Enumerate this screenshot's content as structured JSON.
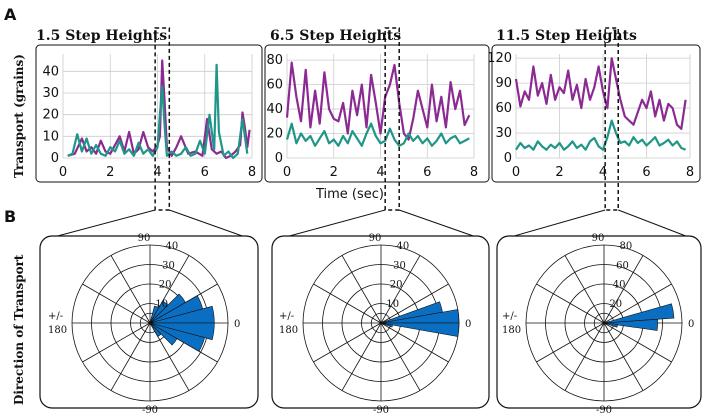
{
  "figure": {
    "panel_a_letter": "A",
    "panel_b_letter": "B",
    "y_label_a": "Transport (grains)",
    "x_label_a": "Time (sec)",
    "y_label_b": "Direction of Transport"
  },
  "colors": {
    "purple": "#8b2a92",
    "teal": "#1f9687",
    "rose_fill": "#0a6fc2",
    "grid": "#cccccc",
    "axis": "#111111"
  },
  "chart_data": [
    {
      "type": "line",
      "title": "1.5 Step Heights",
      "xlim": [
        0,
        8
      ],
      "ylim": [
        0,
        48
      ],
      "xticks": [
        0,
        2,
        4,
        6,
        8
      ],
      "yticks": [
        0,
        10,
        20,
        30,
        40
      ],
      "highlight_window": [
        3.9,
        4.5
      ],
      "grid": true,
      "series": [
        {
          "color": "purple",
          "x": [
            0.2,
            0.5,
            0.8,
            1.0,
            1.2,
            1.4,
            1.6,
            1.8,
            2.0,
            2.2,
            2.4,
            2.6,
            2.8,
            3.0,
            3.2,
            3.4,
            3.6,
            3.8,
            4.0,
            4.1,
            4.2,
            4.3,
            4.4,
            4.5,
            4.6,
            4.8,
            5.0,
            5.3,
            5.6,
            5.9,
            6.1,
            6.3,
            6.5,
            6.7,
            6.9,
            7.1,
            7.3,
            7.5,
            7.6,
            7.7,
            7.8,
            7.9
          ],
          "y": [
            1,
            2,
            9,
            3,
            5,
            2,
            8,
            3,
            2,
            6,
            10,
            3,
            12,
            2,
            4,
            12,
            5,
            3,
            6,
            10,
            45,
            26,
            5,
            3,
            1,
            5,
            10,
            2,
            3,
            1,
            18,
            4,
            2,
            3,
            0,
            1,
            3,
            6,
            21,
            14,
            5,
            13
          ]
        },
        {
          "color": "teal",
          "x": [
            0.2,
            0.4,
            0.6,
            0.8,
            1.0,
            1.2,
            1.4,
            1.6,
            1.8,
            2.0,
            2.2,
            2.4,
            2.6,
            2.8,
            3.0,
            3.2,
            3.4,
            3.6,
            3.8,
            4.0,
            4.1,
            4.2,
            4.3,
            4.4,
            4.6,
            4.8,
            5.0,
            5.2,
            5.4,
            5.6,
            5.8,
            6.0,
            6.2,
            6.4,
            6.5,
            6.6,
            6.8,
            7.0,
            7.2,
            7.4,
            7.6,
            7.8
          ],
          "y": [
            1,
            2,
            11,
            3,
            9,
            2,
            6,
            2,
            1,
            5,
            3,
            8,
            2,
            4,
            1,
            7,
            2,
            4,
            1,
            5,
            20,
            33,
            15,
            1,
            3,
            1,
            2,
            5,
            1,
            2,
            8,
            2,
            20,
            4,
            43,
            12,
            1,
            3,
            0,
            2,
            18,
            2
          ]
        }
      ]
    },
    {
      "type": "line",
      "title": "6.5 Step Heights",
      "xlim": [
        0,
        8
      ],
      "ylim": [
        0,
        85
      ],
      "xticks": [
        0,
        2,
        4,
        6,
        8
      ],
      "yticks": [
        0,
        20,
        40,
        60,
        80
      ],
      "highlight_window": [
        4.2,
        4.8
      ],
      "grid": true,
      "series": [
        {
          "color": "purple",
          "x": [
            0.0,
            0.2,
            0.4,
            0.6,
            0.8,
            1.0,
            1.2,
            1.4,
            1.6,
            1.8,
            2.0,
            2.2,
            2.4,
            2.6,
            2.8,
            3.0,
            3.2,
            3.4,
            3.6,
            3.8,
            4.0,
            4.2,
            4.4,
            4.6,
            4.8,
            5.0,
            5.2,
            5.4,
            5.6,
            5.8,
            6.0,
            6.2,
            6.4,
            6.6,
            6.8,
            7.0,
            7.2,
            7.4,
            7.6,
            7.8
          ],
          "y": [
            33,
            78,
            50,
            30,
            72,
            25,
            55,
            28,
            70,
            40,
            32,
            30,
            45,
            20,
            55,
            35,
            60,
            25,
            68,
            45,
            20,
            50,
            60,
            76,
            45,
            20,
            15,
            32,
            55,
            40,
            25,
            60,
            30,
            50,
            25,
            62,
            40,
            55,
            27,
            35
          ]
        },
        {
          "color": "teal",
          "x": [
            0.0,
            0.2,
            0.4,
            0.6,
            0.8,
            1.0,
            1.2,
            1.4,
            1.6,
            1.8,
            2.0,
            2.2,
            2.4,
            2.6,
            2.8,
            3.0,
            3.2,
            3.4,
            3.6,
            3.8,
            4.0,
            4.2,
            4.4,
            4.6,
            4.8,
            5.0,
            5.2,
            5.4,
            5.6,
            5.8,
            6.0,
            6.2,
            6.4,
            6.6,
            6.8,
            7.0,
            7.2,
            7.4,
            7.6,
            7.8
          ],
          "y": [
            15,
            28,
            12,
            20,
            14,
            18,
            10,
            16,
            22,
            12,
            15,
            10,
            18,
            12,
            22,
            16,
            10,
            20,
            28,
            18,
            12,
            14,
            24,
            15,
            10,
            12,
            20,
            14,
            18,
            12,
            16,
            10,
            14,
            20,
            12,
            16,
            18,
            12,
            14,
            16
          ]
        }
      ]
    },
    {
      "type": "line",
      "title": "11.5 Step Heights",
      "xlim": [
        0,
        8
      ],
      "ylim": [
        0,
        125
      ],
      "xticks": [
        0,
        2,
        4,
        6,
        8
      ],
      "yticks": [
        0,
        30,
        60,
        90,
        120
      ],
      "highlight_window": [
        4.1,
        4.7
      ],
      "grid": true,
      "series": [
        {
          "color": "purple",
          "x": [
            0.0,
            0.2,
            0.4,
            0.6,
            0.8,
            1.0,
            1.2,
            1.4,
            1.6,
            1.8,
            2.0,
            2.2,
            2.4,
            2.6,
            2.8,
            3.0,
            3.2,
            3.4,
            3.6,
            3.8,
            4.0,
            4.2,
            4.4,
            4.6,
            4.8,
            5.0,
            5.2,
            5.4,
            5.6,
            5.8,
            6.0,
            6.2,
            6.4,
            6.6,
            6.8,
            7.0,
            7.2,
            7.4,
            7.6,
            7.8
          ],
          "y": [
            95,
            62,
            80,
            70,
            110,
            75,
            90,
            65,
            100,
            70,
            85,
            78,
            105,
            70,
            88,
            60,
            95,
            70,
            85,
            110,
            80,
            60,
            120,
            95,
            70,
            50,
            45,
            40,
            55,
            70,
            60,
            80,
            50,
            70,
            45,
            65,
            60,
            40,
            35,
            70
          ]
        },
        {
          "color": "teal",
          "x": [
            0.0,
            0.2,
            0.4,
            0.6,
            0.8,
            1.0,
            1.2,
            1.4,
            1.6,
            1.8,
            2.0,
            2.2,
            2.4,
            2.6,
            2.8,
            3.0,
            3.2,
            3.4,
            3.6,
            3.8,
            4.0,
            4.2,
            4.4,
            4.6,
            4.8,
            5.0,
            5.2,
            5.4,
            5.6,
            5.8,
            6.0,
            6.2,
            6.4,
            6.6,
            6.8,
            7.0,
            7.2,
            7.4,
            7.6,
            7.8
          ],
          "y": [
            10,
            18,
            12,
            15,
            10,
            20,
            14,
            10,
            16,
            12,
            18,
            10,
            14,
            20,
            12,
            16,
            10,
            20,
            24,
            14,
            10,
            25,
            45,
            30,
            18,
            20,
            15,
            25,
            18,
            22,
            15,
            20,
            25,
            15,
            18,
            22,
            15,
            20,
            12,
            10
          ]
        }
      ]
    },
    {
      "type": "polar-bar",
      "angle_labels": [
        "0",
        "90",
        "+/-",
        "180",
        "-90"
      ],
      "rlim": [
        0,
        40
      ],
      "rticks": [
        10,
        20,
        30,
        40
      ],
      "sectors": [
        {
          "angle": 67.5,
          "value": 9
        },
        {
          "angle": 52.5,
          "value": 13
        },
        {
          "angle": 37.5,
          "value": 21
        },
        {
          "angle": 22.5,
          "value": 28
        },
        {
          "angle": 7.5,
          "value": 33
        },
        {
          "angle": -7.5,
          "value": 33
        },
        {
          "angle": -22.5,
          "value": 29
        },
        {
          "angle": -37.5,
          "value": 16
        },
        {
          "angle": -52.5,
          "value": 8
        }
      ]
    },
    {
      "type": "polar-bar",
      "angle_labels": [
        "0",
        "90",
        "+/-",
        "180",
        "-90"
      ],
      "rlim": [
        0,
        40
      ],
      "rticks": [
        10,
        20,
        30,
        40
      ],
      "sectors": [
        {
          "angle": 15,
          "value": 32
        },
        {
          "angle": 5,
          "value": 40
        },
        {
          "angle": -5,
          "value": 40
        },
        {
          "angle": -15,
          "value": 6
        }
      ]
    },
    {
      "type": "polar-bar",
      "angle_labels": [
        "0",
        "90",
        "+/-",
        "180",
        "-90"
      ],
      "rlim": [
        0,
        80
      ],
      "rticks": [
        20,
        40,
        60,
        80
      ],
      "sectors": [
        {
          "angle": 10,
          "value": 72
        },
        {
          "angle": -2,
          "value": 55
        },
        {
          "angle": -12,
          "value": 14
        }
      ]
    }
  ]
}
